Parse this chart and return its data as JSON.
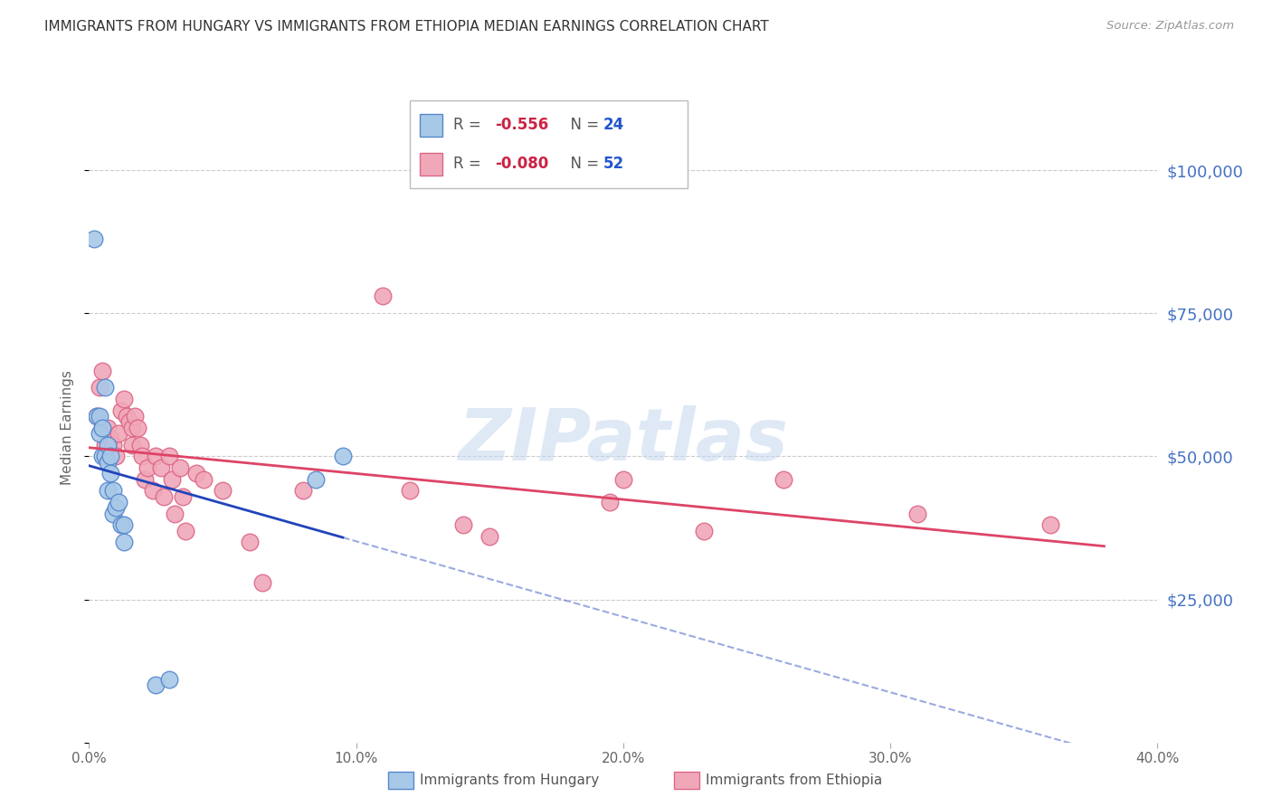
{
  "title": "IMMIGRANTS FROM HUNGARY VS IMMIGRANTS FROM ETHIOPIA MEDIAN EARNINGS CORRELATION CHART",
  "source": "Source: ZipAtlas.com",
  "ylabel_label": "Median Earnings",
  "xlim": [
    0.0,
    0.4
  ],
  "ylim": [
    0,
    110000
  ],
  "yticks": [
    0,
    25000,
    50000,
    75000,
    100000
  ],
  "ytick_labels": [
    "",
    "$25,000",
    "$50,000",
    "$75,000",
    "$100,000"
  ],
  "xticks": [
    0.0,
    0.1,
    0.2,
    0.3,
    0.4
  ],
  "xtick_labels": [
    "0.0%",
    "10.0%",
    "20.0%",
    "30.0%",
    "40.0%"
  ],
  "background_color": "#ffffff",
  "grid_color": "#cccccc",
  "watermark": "ZIPatlas",
  "hungary_color": "#a8c8e8",
  "ethiopia_color": "#f0a8b8",
  "hungary_edge_color": "#5588cc",
  "ethiopia_edge_color": "#dd6688",
  "trend_hungary_color": "#2244bb",
  "trend_ethiopia_color": "#dd4466",
  "hungary_scatter_x": [
    0.002,
    0.003,
    0.004,
    0.004,
    0.005,
    0.005,
    0.006,
    0.006,
    0.007,
    0.007,
    0.007,
    0.008,
    0.008,
    0.009,
    0.009,
    0.01,
    0.011,
    0.012,
    0.013,
    0.013,
    0.025,
    0.03,
    0.085,
    0.095
  ],
  "hungary_scatter_y": [
    88000,
    57000,
    57000,
    54000,
    55000,
    50000,
    62000,
    50000,
    52000,
    49000,
    44000,
    50000,
    47000,
    44000,
    40000,
    41000,
    42000,
    38000,
    38000,
    35000,
    10000,
    11000,
    46000,
    50000
  ],
  "ethiopia_scatter_x": [
    0.003,
    0.004,
    0.005,
    0.005,
    0.006,
    0.006,
    0.007,
    0.008,
    0.009,
    0.01,
    0.011,
    0.012,
    0.013,
    0.014,
    0.015,
    0.016,
    0.016,
    0.017,
    0.018,
    0.019,
    0.02,
    0.021,
    0.022,
    0.024,
    0.025,
    0.027,
    0.028,
    0.03,
    0.031,
    0.032,
    0.034,
    0.035,
    0.036,
    0.04,
    0.043,
    0.05,
    0.06,
    0.065,
    0.08,
    0.11,
    0.12,
    0.14,
    0.15,
    0.195,
    0.2,
    0.23,
    0.26,
    0.31,
    0.36
  ],
  "ethiopia_scatter_y": [
    57000,
    62000,
    65000,
    55000,
    52000,
    50000,
    55000,
    53000,
    52000,
    50000,
    54000,
    58000,
    60000,
    57000,
    56000,
    55000,
    52000,
    57000,
    55000,
    52000,
    50000,
    46000,
    48000,
    44000,
    50000,
    48000,
    43000,
    50000,
    46000,
    40000,
    48000,
    43000,
    37000,
    47000,
    46000,
    44000,
    35000,
    28000,
    44000,
    78000,
    44000,
    38000,
    36000,
    42000,
    46000,
    37000,
    46000,
    40000,
    38000
  ]
}
